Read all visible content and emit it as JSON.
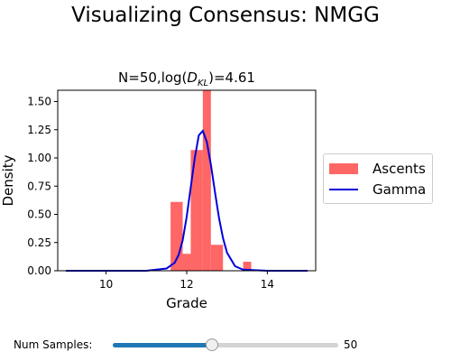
{
  "figure": {
    "title": "Visualizing Consensus: NMGG"
  },
  "chart_data": {
    "type": "bar",
    "title": "N=50,log(D_KL)=4.61",
    "title_parts": {
      "prefix": "N=50,log(",
      "symbol": "D",
      "subscript": "KL",
      "suffix": ")=4.61"
    },
    "xlabel": "Grade",
    "ylabel": "Density",
    "xlim": [
      8.8,
      15.2
    ],
    "ylim": [
      0,
      1.6
    ],
    "x_ticks": [
      10,
      12,
      14
    ],
    "y_ticks": [
      0.0,
      0.25,
      0.5,
      0.75,
      1.0,
      1.25,
      1.5
    ],
    "y_tick_labels": [
      "0.00",
      "0.25",
      "0.50",
      "0.75",
      "1.00",
      "1.25",
      "1.50"
    ],
    "grid": false,
    "legend_position": "right-outside",
    "histogram": {
      "name": "Ascents",
      "color": "#ff6666",
      "bins": [
        {
          "x0": 11.6,
          "x1": 11.9,
          "density": 0.61
        },
        {
          "x0": 11.9,
          "x1": 12.1,
          "density": 0.15
        },
        {
          "x0": 12.1,
          "x1": 12.4,
          "density": 1.07
        },
        {
          "x0": 12.4,
          "x1": 12.6,
          "density": 1.6
        },
        {
          "x0": 12.6,
          "x1": 12.9,
          "density": 0.23
        },
        {
          "x0": 13.4,
          "x1": 13.6,
          "density": 0.08
        }
      ]
    },
    "gamma_curve": {
      "name": "Gamma",
      "color": "#0000dd",
      "x": [
        9.0,
        11.0,
        11.5,
        11.7,
        11.8,
        11.9,
        12.0,
        12.1,
        12.2,
        12.3,
        12.4,
        12.5,
        12.6,
        12.7,
        12.8,
        12.9,
        13.0,
        13.2,
        13.4,
        14.0,
        15.0
      ],
      "y": [
        0.0,
        0.0,
        0.02,
        0.07,
        0.14,
        0.27,
        0.48,
        0.74,
        1.0,
        1.2,
        1.24,
        1.14,
        0.94,
        0.7,
        0.47,
        0.29,
        0.16,
        0.04,
        0.01,
        0.0,
        0.0
      ]
    }
  },
  "slider": {
    "label": "Num Samples:",
    "value": "50",
    "fraction": 0.44
  }
}
